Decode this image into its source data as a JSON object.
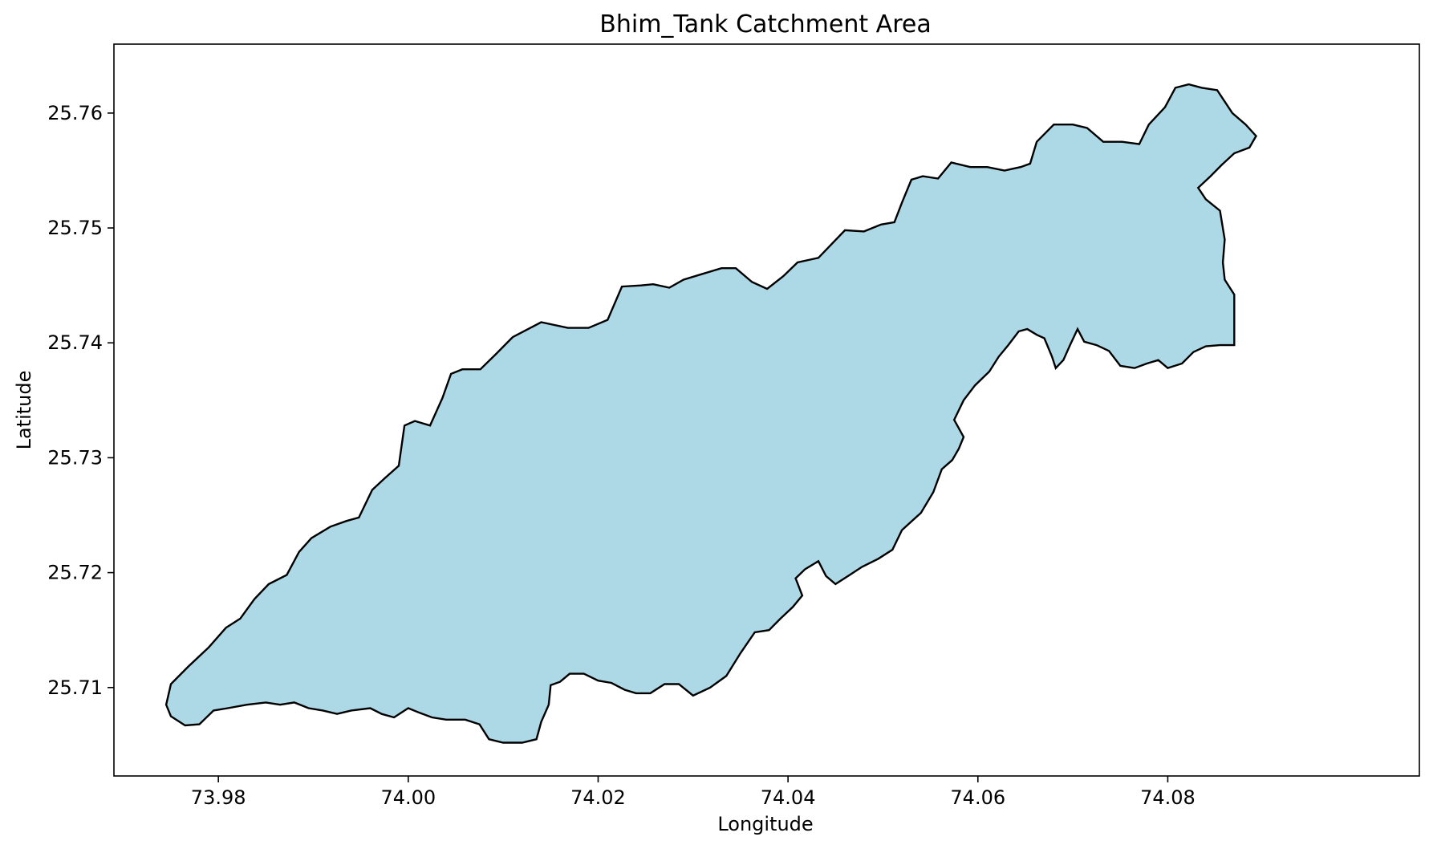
{
  "chart_data": {
    "type": "area",
    "title": "Bhim_Tank Catchment Area",
    "xlabel": "Longitude",
    "ylabel": "Latitude",
    "xlim": [
      73.969,
      74.1065
    ],
    "ylim": [
      25.7023,
      25.766
    ],
    "xticks": [
      {
        "value": 73.98,
        "label": "73.98"
      },
      {
        "value": 74.0,
        "label": "74.00"
      },
      {
        "value": 74.02,
        "label": "74.02"
      },
      {
        "value": 74.04,
        "label": "74.04"
      },
      {
        "value": 74.06,
        "label": "74.06"
      },
      {
        "value": 74.08,
        "label": "74.08"
      }
    ],
    "yticks": [
      {
        "value": 25.71,
        "label": "25.71"
      },
      {
        "value": 25.72,
        "label": "25.72"
      },
      {
        "value": 25.73,
        "label": "25.73"
      },
      {
        "value": 25.74,
        "label": "25.74"
      },
      {
        "value": 25.75,
        "label": "25.75"
      },
      {
        "value": 25.76,
        "label": "25.76"
      }
    ],
    "grid": false,
    "legend": "none",
    "fill_color": "#add8e6",
    "edge_color": "#000000",
    "series": [
      {
        "boundary": [
          [
            73.975,
            25.7103
          ],
          [
            73.9768,
            25.7118
          ],
          [
            73.979,
            25.7135
          ],
          [
            73.9808,
            25.7152
          ],
          [
            73.9823,
            25.716
          ],
          [
            73.9838,
            25.7177
          ],
          [
            73.9853,
            25.719
          ],
          [
            73.9872,
            25.7198
          ],
          [
            73.9885,
            25.7218
          ],
          [
            73.9898,
            25.723
          ],
          [
            73.9918,
            25.724
          ],
          [
            73.9935,
            25.7245
          ],
          [
            73.9948,
            25.7248
          ],
          [
            73.9962,
            25.7272
          ],
          [
            73.9975,
            25.7282
          ],
          [
            73.999,
            25.7293
          ],
          [
            73.9996,
            25.7328
          ],
          [
            74.0007,
            25.7332
          ],
          [
            74.0023,
            25.7328
          ],
          [
            74.0036,
            25.7352
          ],
          [
            74.0045,
            25.7373
          ],
          [
            74.0057,
            25.7377
          ],
          [
            74.0076,
            25.7377
          ],
          [
            74.0092,
            25.739
          ],
          [
            74.011,
            25.7405
          ],
          [
            74.014,
            25.7418
          ],
          [
            74.0168,
            25.7413
          ],
          [
            74.019,
            25.7413
          ],
          [
            74.021,
            25.742
          ],
          [
            74.0225,
            25.7449
          ],
          [
            74.0245,
            25.745
          ],
          [
            74.0258,
            25.7451
          ],
          [
            74.0275,
            25.7448
          ],
          [
            74.029,
            25.7455
          ],
          [
            74.031,
            25.746
          ],
          [
            74.033,
            25.7465
          ],
          [
            74.0345,
            25.7465
          ],
          [
            74.0362,
            25.7453
          ],
          [
            74.0378,
            25.7447
          ],
          [
            74.0395,
            25.7458
          ],
          [
            74.041,
            25.747
          ],
          [
            74.0432,
            25.7474
          ],
          [
            74.046,
            25.7498
          ],
          [
            74.048,
            25.7497
          ],
          [
            74.0498,
            25.7503
          ],
          [
            74.0512,
            25.7505
          ],
          [
            74.052,
            25.7522
          ],
          [
            74.053,
            25.7542
          ],
          [
            74.0542,
            25.7545
          ],
          [
            74.0558,
            25.7543
          ],
          [
            74.0572,
            25.7557
          ],
          [
            74.0592,
            25.7553
          ],
          [
            74.061,
            25.7553
          ],
          [
            74.0628,
            25.755
          ],
          [
            74.0645,
            25.7553
          ],
          [
            74.0655,
            25.7556
          ],
          [
            74.0662,
            25.7575
          ],
          [
            74.068,
            25.759
          ],
          [
            74.07,
            25.759
          ],
          [
            74.0715,
            25.7587
          ],
          [
            74.0732,
            25.7575
          ],
          [
            74.0752,
            25.7575
          ],
          [
            74.077,
            25.7573
          ],
          [
            74.078,
            25.759
          ],
          [
            74.0797,
            25.7605
          ],
          [
            74.0808,
            25.7622
          ],
          [
            74.0822,
            25.7625
          ],
          [
            74.0836,
            25.7622
          ],
          [
            74.0852,
            25.762
          ],
          [
            74.0868,
            25.76
          ],
          [
            74.0882,
            25.759
          ],
          [
            74.0893,
            25.758
          ],
          [
            74.0886,
            25.757
          ],
          [
            74.087,
            25.7565
          ],
          [
            74.0857,
            25.7555
          ],
          [
            74.0845,
            25.7545
          ],
          [
            74.0832,
            25.7535
          ],
          [
            74.084,
            25.7525
          ],
          [
            74.0855,
            25.7515
          ],
          [
            74.086,
            25.749
          ],
          [
            74.0858,
            25.747
          ],
          [
            74.086,
            25.7455
          ],
          [
            74.087,
            25.7442
          ],
          [
            74.087,
            25.7398
          ],
          [
            74.0855,
            25.7398
          ],
          [
            74.084,
            25.7397
          ],
          [
            74.0827,
            25.7392
          ],
          [
            74.0815,
            25.7382
          ],
          [
            74.08,
            25.7378
          ],
          [
            74.079,
            25.7385
          ],
          [
            74.0778,
            25.7382
          ],
          [
            74.0765,
            25.7378
          ],
          [
            74.075,
            25.738
          ],
          [
            74.0738,
            25.7393
          ],
          [
            74.0725,
            25.7398
          ],
          [
            74.0712,
            25.7401
          ],
          [
            74.0705,
            25.7412
          ],
          [
            74.0697,
            25.7398
          ],
          [
            74.069,
            25.7385
          ],
          [
            74.0682,
            25.7378
          ],
          [
            74.0678,
            25.7388
          ],
          [
            74.067,
            25.7404
          ],
          [
            74.0662,
            25.7407
          ],
          [
            74.0652,
            25.7412
          ],
          [
            74.0643,
            25.741
          ],
          [
            74.0632,
            25.7398
          ],
          [
            74.0622,
            25.7388
          ],
          [
            74.0612,
            25.7375
          ],
          [
            74.0597,
            25.7363
          ],
          [
            74.0585,
            25.735
          ],
          [
            74.0575,
            25.7333
          ],
          [
            74.0585,
            25.7318
          ],
          [
            74.058,
            25.7308
          ],
          [
            74.0573,
            25.7298
          ],
          [
            74.0562,
            25.729
          ],
          [
            74.0553,
            25.727
          ],
          [
            74.054,
            25.7252
          ],
          [
            74.052,
            25.7237
          ],
          [
            74.051,
            25.722
          ],
          [
            74.0495,
            25.7212
          ],
          [
            74.0478,
            25.7205
          ],
          [
            74.0465,
            25.7198
          ],
          [
            74.045,
            25.719
          ],
          [
            74.044,
            25.7197
          ],
          [
            74.0432,
            25.721
          ],
          [
            74.0418,
            25.7203
          ],
          [
            74.0408,
            25.7195
          ],
          [
            74.0415,
            25.718
          ],
          [
            74.0405,
            25.717
          ],
          [
            74.0392,
            25.716
          ],
          [
            74.038,
            25.715
          ],
          [
            74.0365,
            25.7148
          ],
          [
            74.035,
            25.713
          ],
          [
            74.0335,
            25.711
          ],
          [
            74.0318,
            25.71
          ],
          [
            74.03,
            25.7093
          ],
          [
            74.0285,
            25.7103
          ],
          [
            74.027,
            25.7103
          ],
          [
            74.0255,
            25.7095
          ],
          [
            74.024,
            25.7095
          ],
          [
            74.0228,
            25.7098
          ],
          [
            74.0214,
            25.7104
          ],
          [
            74.02,
            25.7106
          ],
          [
            74.0185,
            25.7112
          ],
          [
            74.017,
            25.7112
          ],
          [
            74.016,
            25.7105
          ],
          [
            74.015,
            25.7102
          ],
          [
            74.0148,
            25.7085
          ],
          [
            74.014,
            25.707
          ],
          [
            74.0135,
            25.7055
          ],
          [
            74.012,
            25.7052
          ],
          [
            74.01,
            25.7052
          ],
          [
            74.0085,
            25.7055
          ],
          [
            74.0075,
            25.7068
          ],
          [
            74.006,
            25.7072
          ],
          [
            74.004,
            25.7072
          ],
          [
            74.0025,
            25.7074
          ],
          [
            74.0012,
            25.7078
          ],
          [
            74.0,
            25.7082
          ],
          [
            73.9985,
            25.7074
          ],
          [
            73.9972,
            25.7077
          ],
          [
            73.996,
            25.7082
          ],
          [
            73.994,
            25.708
          ],
          [
            73.9925,
            25.7077
          ],
          [
            73.991,
            25.708
          ],
          [
            73.9895,
            25.7082
          ],
          [
            73.988,
            25.7087
          ],
          [
            73.9865,
            25.7085
          ],
          [
            73.985,
            25.7087
          ],
          [
            73.983,
            25.7085
          ],
          [
            73.981,
            25.7082
          ],
          [
            73.9795,
            25.708
          ],
          [
            73.978,
            25.7068
          ],
          [
            73.9765,
            25.7067
          ],
          [
            73.975,
            25.7075
          ],
          [
            73.9745,
            25.7085
          ]
        ]
      }
    ]
  }
}
